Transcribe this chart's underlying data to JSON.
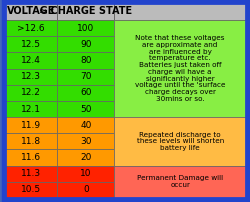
{
  "headers": [
    "VOLTAGE",
    "≈ CHARGE STATE",
    ""
  ],
  "rows": [
    [
      ">12.6",
      "100"
    ],
    [
      "12.5",
      "90"
    ],
    [
      "12.4",
      "80"
    ],
    [
      "12.3",
      "70"
    ],
    [
      "12.2",
      "60"
    ],
    [
      "12.1",
      "50"
    ],
    [
      "11.9",
      "40"
    ],
    [
      "11.8",
      "30"
    ],
    [
      "11.6",
      "20"
    ],
    [
      "11.3",
      "10"
    ],
    [
      "10.5",
      "0"
    ]
  ],
  "row_colors": [
    "#33dd00",
    "#33dd00",
    "#33dd00",
    "#33dd00",
    "#33dd00",
    "#33dd00",
    "#ff9900",
    "#ff9900",
    "#ff9900",
    "#ff2200",
    "#ff2200"
  ],
  "note_green": "Note that these voltages\nare approximate and\nare influenced by\ntemperature etc.\nBatteries just taken off\ncharge wil have a\nsignificantly higher\nvoltage until the 'surface\ncharge decays over\n30mins or so.",
  "note_orange": "Repeated discharge to\nthese levels will shorten\nbattery life",
  "note_red": "Permanent Damage will\noccur",
  "note_green_bg": "#88ee44",
  "note_orange_bg": "#ffbb44",
  "note_red_bg": "#ff6655",
  "header_bg": "#bbbbbb",
  "outer_border_color": "#2244cc",
  "inner_border_color": "#666666",
  "bg_color": "#4466bb",
  "header_fontsize": 7.0,
  "cell_fontsize": 6.5,
  "note_fontsize": 5.2
}
